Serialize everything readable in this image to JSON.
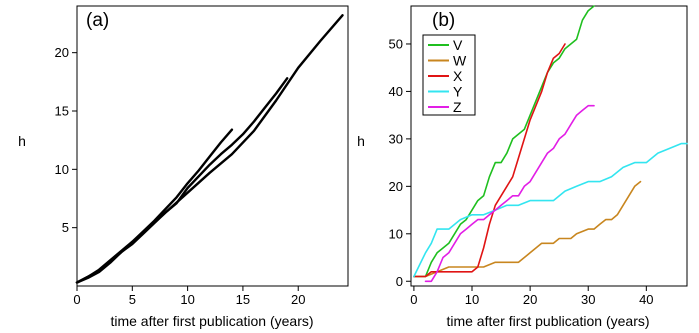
{
  "chart_data": [
    {
      "panel_label": "(a)",
      "type": "line",
      "xlabel": "time after first publication (years)",
      "ylabel": "h",
      "xlim": [
        0,
        24.5
      ],
      "ylim": [
        0,
        24
      ],
      "xticks": [
        0,
        5,
        10,
        15,
        20
      ],
      "yticks": [
        5,
        10,
        15,
        20
      ],
      "grid": false,
      "series": [
        {
          "color": "#000000",
          "points": [
            [
              0,
              0.3
            ],
            [
              1,
              0.8
            ],
            [
              2,
              1.4
            ],
            [
              3,
              2.2
            ],
            [
              4,
              3.0
            ],
            [
              5,
              3.8
            ],
            [
              6,
              4.7
            ],
            [
              7,
              5.6
            ],
            [
              8,
              6.6
            ],
            [
              9,
              7.6
            ],
            [
              10,
              8.8
            ],
            [
              11,
              9.9
            ],
            [
              12,
              11.1
            ],
            [
              13,
              12.3
            ],
            [
              14,
              13.4
            ]
          ]
        },
        {
          "color": "#000000",
          "points": [
            [
              0,
              0.3
            ],
            [
              2,
              1.3
            ],
            [
              4,
              2.9
            ],
            [
              6,
              4.6
            ],
            [
              8,
              6.3
            ],
            [
              10,
              8.0
            ],
            [
              12,
              9.7
            ],
            [
              14,
              11.3
            ],
            [
              16,
              13.3
            ],
            [
              18,
              15.9
            ],
            [
              20,
              18.7
            ],
            [
              22,
              21.0
            ],
            [
              24,
              23.2
            ]
          ]
        },
        {
          "color": "#000000",
          "points": [
            [
              0,
              0.3
            ],
            [
              1,
              0.7
            ],
            [
              2,
              1.2
            ],
            [
              3,
              2.0
            ],
            [
              4,
              2.9
            ],
            [
              5,
              3.6
            ],
            [
              6,
              4.5
            ],
            [
              7,
              5.4
            ],
            [
              8,
              6.3
            ],
            [
              9,
              7.1
            ],
            [
              10,
              8.4
            ],
            [
              11,
              9.4
            ],
            [
              12,
              10.4
            ],
            [
              13,
              11.3
            ],
            [
              14,
              12.1
            ],
            [
              15,
              13.0
            ],
            [
              16,
              14.1
            ],
            [
              17,
              15.3
            ],
            [
              18,
              16.5
            ],
            [
              19,
              17.8
            ]
          ]
        }
      ]
    },
    {
      "panel_label": "(b)",
      "type": "line",
      "xlabel": "time after first publication (years)",
      "ylabel": "h",
      "xlim": [
        -0.5,
        47
      ],
      "ylim": [
        -1,
        58
      ],
      "xticks": [
        0,
        10,
        20,
        30,
        40
      ],
      "yticks": [
        0,
        10,
        20,
        30,
        40,
        50
      ],
      "grid": false,
      "legend_position": "top-left",
      "series": [
        {
          "name": "V",
          "color": "#1fbf1f",
          "points": [
            [
              0,
              1
            ],
            [
              2,
              1
            ],
            [
              3,
              4
            ],
            [
              4,
              6
            ],
            [
              5,
              7
            ],
            [
              6,
              8
            ],
            [
              7,
              10
            ],
            [
              8,
              12
            ],
            [
              9,
              13
            ],
            [
              10,
              15
            ],
            [
              11,
              17
            ],
            [
              12,
              18
            ],
            [
              13,
              22
            ],
            [
              14,
              25
            ],
            [
              15,
              25
            ],
            [
              16,
              27
            ],
            [
              17,
              30
            ],
            [
              18,
              31
            ],
            [
              19,
              32
            ],
            [
              20,
              35
            ],
            [
              21,
              38
            ],
            [
              22,
              41
            ],
            [
              23,
              44
            ],
            [
              24,
              46
            ],
            [
              25,
              47
            ],
            [
              26,
              49
            ],
            [
              27,
              50
            ],
            [
              28,
              51
            ],
            [
              29,
              55
            ],
            [
              30,
              57
            ],
            [
              31,
              58
            ]
          ]
        },
        {
          "name": "W",
          "color": "#c8861f",
          "points": [
            [
              0,
              1
            ],
            [
              2,
              1
            ],
            [
              4,
              2
            ],
            [
              6,
              3
            ],
            [
              12,
              3
            ],
            [
              14,
              4
            ],
            [
              18,
              4
            ],
            [
              20,
              6
            ],
            [
              22,
              8
            ],
            [
              24,
              8
            ],
            [
              25,
              9
            ],
            [
              27,
              9
            ],
            [
              28,
              10
            ],
            [
              30,
              11
            ],
            [
              31,
              11
            ],
            [
              32,
              12
            ],
            [
              33,
              13
            ],
            [
              34,
              13
            ],
            [
              35,
              14
            ],
            [
              36,
              16
            ],
            [
              37,
              18
            ],
            [
              38,
              20
            ],
            [
              39,
              21
            ]
          ]
        },
        {
          "name": "X",
          "color": "#e01414",
          "points": [
            [
              0,
              1
            ],
            [
              2,
              1
            ],
            [
              3,
              2
            ],
            [
              10,
              2
            ],
            [
              11,
              3
            ],
            [
              12,
              7
            ],
            [
              13,
              12
            ],
            [
              14,
              16
            ],
            [
              15,
              18
            ],
            [
              16,
              20
            ],
            [
              17,
              22
            ],
            [
              18,
              26
            ],
            [
              19,
              30
            ],
            [
              20,
              34
            ],
            [
              21,
              37
            ],
            [
              22,
              40
            ],
            [
              23,
              44
            ],
            [
              24,
              47
            ],
            [
              25,
              48
            ],
            [
              26,
              50
            ]
          ]
        },
        {
          "name": "Y",
          "color": "#33e5f0",
          "points": [
            [
              0,
              1
            ],
            [
              2,
              6
            ],
            [
              3,
              8
            ],
            [
              4,
              11
            ],
            [
              6,
              11
            ],
            [
              8,
              13
            ],
            [
              10,
              14
            ],
            [
              12,
              14
            ],
            [
              14,
              15
            ],
            [
              16,
              16
            ],
            [
              18,
              16
            ],
            [
              20,
              17
            ],
            [
              24,
              17
            ],
            [
              26,
              19
            ],
            [
              28,
              20
            ],
            [
              30,
              21
            ],
            [
              32,
              21
            ],
            [
              34,
              22
            ],
            [
              36,
              24
            ],
            [
              38,
              25
            ],
            [
              40,
              25
            ],
            [
              42,
              27
            ],
            [
              44,
              28
            ],
            [
              46,
              29
            ],
            [
              47,
              29
            ]
          ]
        },
        {
          "name": "Z",
          "color": "#e21ee6",
          "points": [
            [
              2,
              0
            ],
            [
              3,
              0
            ],
            [
              4,
              2
            ],
            [
              5,
              5
            ],
            [
              6,
              6
            ],
            [
              7,
              8
            ],
            [
              8,
              10
            ],
            [
              9,
              11
            ],
            [
              10,
              12
            ],
            [
              11,
              13
            ],
            [
              12,
              13
            ],
            [
              13,
              14
            ],
            [
              14,
              15
            ],
            [
              15,
              16
            ],
            [
              16,
              17
            ],
            [
              17,
              18
            ],
            [
              18,
              18
            ],
            [
              19,
              20
            ],
            [
              20,
              21
            ],
            [
              21,
              23
            ],
            [
              22,
              25
            ],
            [
              23,
              27
            ],
            [
              24,
              28
            ],
            [
              25,
              30
            ],
            [
              26,
              31
            ],
            [
              27,
              33
            ],
            [
              28,
              35
            ],
            [
              29,
              36
            ],
            [
              30,
              37
            ],
            [
              31,
              37
            ]
          ]
        }
      ]
    }
  ]
}
